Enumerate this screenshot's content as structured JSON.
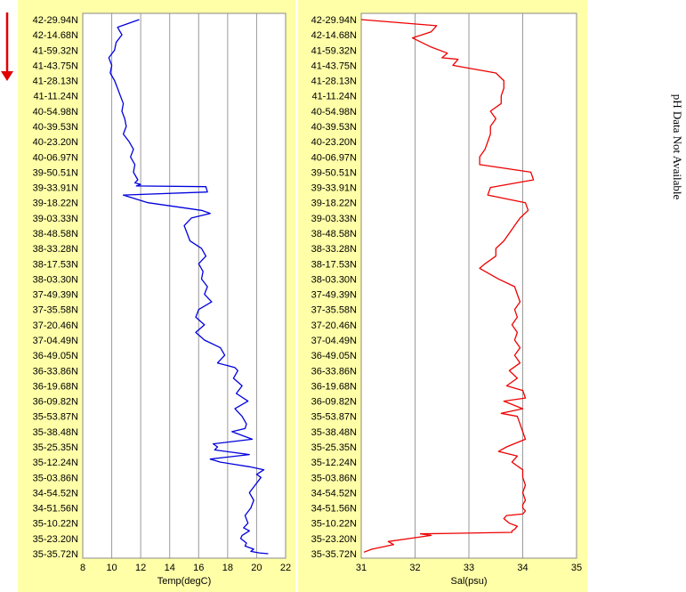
{
  "side_note": "pH Data Not Available",
  "direction_color": "#e00000",
  "panel_bg": "#ffffa8",
  "plot_bg": "#ffffff",
  "chart_data": [
    {
      "type": "line",
      "xlabel": "Temp(degC)",
      "xlim": [
        8,
        22
      ],
      "xticks": [
        8,
        10,
        12,
        14,
        16,
        18,
        20,
        22
      ],
      "grid": true,
      "color": "#0000dd",
      "y_categories": [
        "42-29.94N",
        "42-14.68N",
        "41-59.32N",
        "41-43.75N",
        "41-28.13N",
        "41-11.24N",
        "40-54.98N",
        "40-39.53N",
        "40-23.20N",
        "40-06.97N",
        "39-50.51N",
        "39-33.91N",
        "39-18.22N",
        "39-03.33N",
        "38-48.58N",
        "38-33.28N",
        "38-17.53N",
        "38-03.30N",
        "37-49.39N",
        "37-35.58N",
        "37-20.46N",
        "37-04.49N",
        "36-49.05N",
        "36-33.86N",
        "36-19.68N",
        "36-09.82N",
        "35-53.87N",
        "35-38.48N",
        "35-25.35N",
        "35-12.24N",
        "35-03.86N",
        "34-54.52N",
        "34-51.56N",
        "35-10.22N",
        "35-23.20N",
        "35-35.72N"
      ],
      "x": [
        11.9,
        10.4,
        10.7,
        10.3,
        10.2,
        9.8,
        10.0,
        9.9,
        10.2,
        10.4,
        10.6,
        10.8,
        10.7,
        10.9,
        11.0,
        10.8,
        11.2,
        11.5,
        11.3,
        11.6,
        11.5,
        11.8,
        11.6,
        12.0,
        11.7,
        16.5,
        16.6,
        10.8,
        12.5,
        16.2,
        16.8,
        15.5,
        15.0,
        15.2,
        15.4,
        16.2,
        16.5,
        16.0,
        16.3,
        16.2,
        16.6,
        16.4,
        16.9,
        16.0,
        15.8,
        16.4,
        15.8,
        16.4,
        17.5,
        17.8,
        17.3,
        18.5,
        18.7,
        18.4,
        19.0,
        18.6,
        19.4,
        18.5,
        19.0,
        19.3,
        19.2,
        18.3,
        19.7,
        17.0,
        17.3,
        17.1,
        19.5,
        16.8,
        17.5,
        19.5,
        20.5,
        20.0,
        20.3,
        19.9,
        19.5,
        19.8,
        19.6,
        19.2,
        19.4,
        19.1,
        19.5,
        19.0,
        18.9,
        19.3,
        19.2,
        19.8,
        19.6,
        20.2,
        20.8
      ],
      "y": [
        0,
        0.5,
        1,
        1.5,
        2,
        2.5,
        3,
        3.5,
        4,
        4.5,
        5,
        5.5,
        6,
        6.5,
        7,
        7.5,
        8,
        8.5,
        9,
        9.5,
        10,
        10.5,
        10.7,
        10.8,
        10.9,
        10.95,
        11.3,
        11.5,
        12.0,
        12.5,
        12.7,
        13.0,
        13.5,
        14.0,
        14.5,
        15.0,
        15.5,
        16.0,
        16.5,
        17.0,
        17.5,
        18.0,
        18.5,
        19.0,
        19.5,
        20.0,
        20.5,
        21.0,
        21.5,
        22.0,
        22.5,
        22.8,
        23.0,
        23.5,
        24.0,
        24.5,
        25.0,
        25.5,
        26.0,
        26.5,
        26.8,
        27.0,
        27.5,
        27.8,
        28.0,
        28.2,
        28.5,
        28.8,
        29.0,
        29.3,
        29.5,
        29.8,
        30.0,
        30.5,
        31.0,
        31.5,
        32.0,
        32.5,
        33.0,
        33.3,
        33.5,
        33.8,
        34.0,
        34.3,
        34.5,
        34.7,
        34.85,
        34.95,
        35.0
      ]
    },
    {
      "type": "line",
      "xlabel": "Sal(psu)",
      "xlim": [
        31,
        35
      ],
      "xticks": [
        31,
        32,
        33,
        34,
        35
      ],
      "grid": true,
      "color": "#ee0000",
      "y_categories": [
        "42-29.94N",
        "42-14.68N",
        "41-59.32N",
        "41-43.75N",
        "41-28.13N",
        "41-11.24N",
        "40-54.98N",
        "40-39.53N",
        "40-23.20N",
        "40-06.97N",
        "39-50.51N",
        "39-33.91N",
        "39-18.22N",
        "39-03.33N",
        "38-48.58N",
        "38-33.28N",
        "38-17.53N",
        "38-03.30N",
        "37-49.39N",
        "37-35.58N",
        "37-20.46N",
        "37-04.49N",
        "36-49.05N",
        "36-33.86N",
        "36-19.68N",
        "36-09.82N",
        "35-53.87N",
        "35-38.48N",
        "35-25.35N",
        "35-12.24N",
        "35-03.86N",
        "34-54.52N",
        "34-51.56N",
        "35-10.22N",
        "35-23.20N",
        "35-35.72N"
      ],
      "x": [
        31.0,
        32.4,
        32.3,
        31.95,
        32.3,
        32.6,
        32.5,
        32.8,
        32.7,
        33.5,
        33.65,
        33.65,
        33.6,
        33.6,
        33.4,
        33.5,
        33.4,
        33.4,
        33.35,
        33.3,
        33.2,
        33.2,
        34.15,
        34.2,
        33.4,
        33.35,
        34.05,
        34.1,
        33.95,
        33.85,
        33.75,
        33.65,
        33.5,
        33.5,
        33.3,
        33.2,
        33.55,
        33.85,
        33.9,
        33.95,
        33.85,
        33.9,
        33.8,
        33.9,
        33.85,
        33.95,
        33.85,
        33.95,
        33.75,
        33.9,
        33.7,
        34.0,
        34.05,
        33.65,
        34.0,
        33.6,
        33.9,
        33.95,
        34.0,
        34.05,
        33.7,
        33.55,
        33.9,
        33.8,
        34.0,
        34.0,
        34.05,
        34.0,
        34.05,
        34.0,
        34.0,
        34.05,
        34.0,
        33.7,
        33.65,
        33.75,
        33.9,
        33.85,
        33.8,
        33.8,
        32.1,
        32.3,
        31.9,
        31.5,
        31.6,
        31.2,
        31.05
      ],
      "y": [
        0,
        0.4,
        0.8,
        1.2,
        1.8,
        2.2,
        2.5,
        2.6,
        3.0,
        3.5,
        4.0,
        4.5,
        5.0,
        5.5,
        6.0,
        6.5,
        7.0,
        7.5,
        8.0,
        8.5,
        9.0,
        9.5,
        10.0,
        10.5,
        11.0,
        11.5,
        12.0,
        12.5,
        13.0,
        13.5,
        14.0,
        14.5,
        15.0,
        15.5,
        16.0,
        16.3,
        17.0,
        17.5,
        18.0,
        18.5,
        19.0,
        19.5,
        20.0,
        20.5,
        21.0,
        21.5,
        22.0,
        22.5,
        23.0,
        23.5,
        24.0,
        24.3,
        24.8,
        25.0,
        25.5,
        25.8,
        26.0,
        26.5,
        27.0,
        27.5,
        28.0,
        28.3,
        28.6,
        29.0,
        29.5,
        30.0,
        30.5,
        31.0,
        31.5,
        31.8,
        32.0,
        32.2,
        32.4,
        32.5,
        32.7,
        33.0,
        33.2,
        33.4,
        33.5,
        33.6,
        33.7,
        33.8,
        34.0,
        34.2,
        34.4,
        34.7,
        34.9
      ]
    }
  ]
}
